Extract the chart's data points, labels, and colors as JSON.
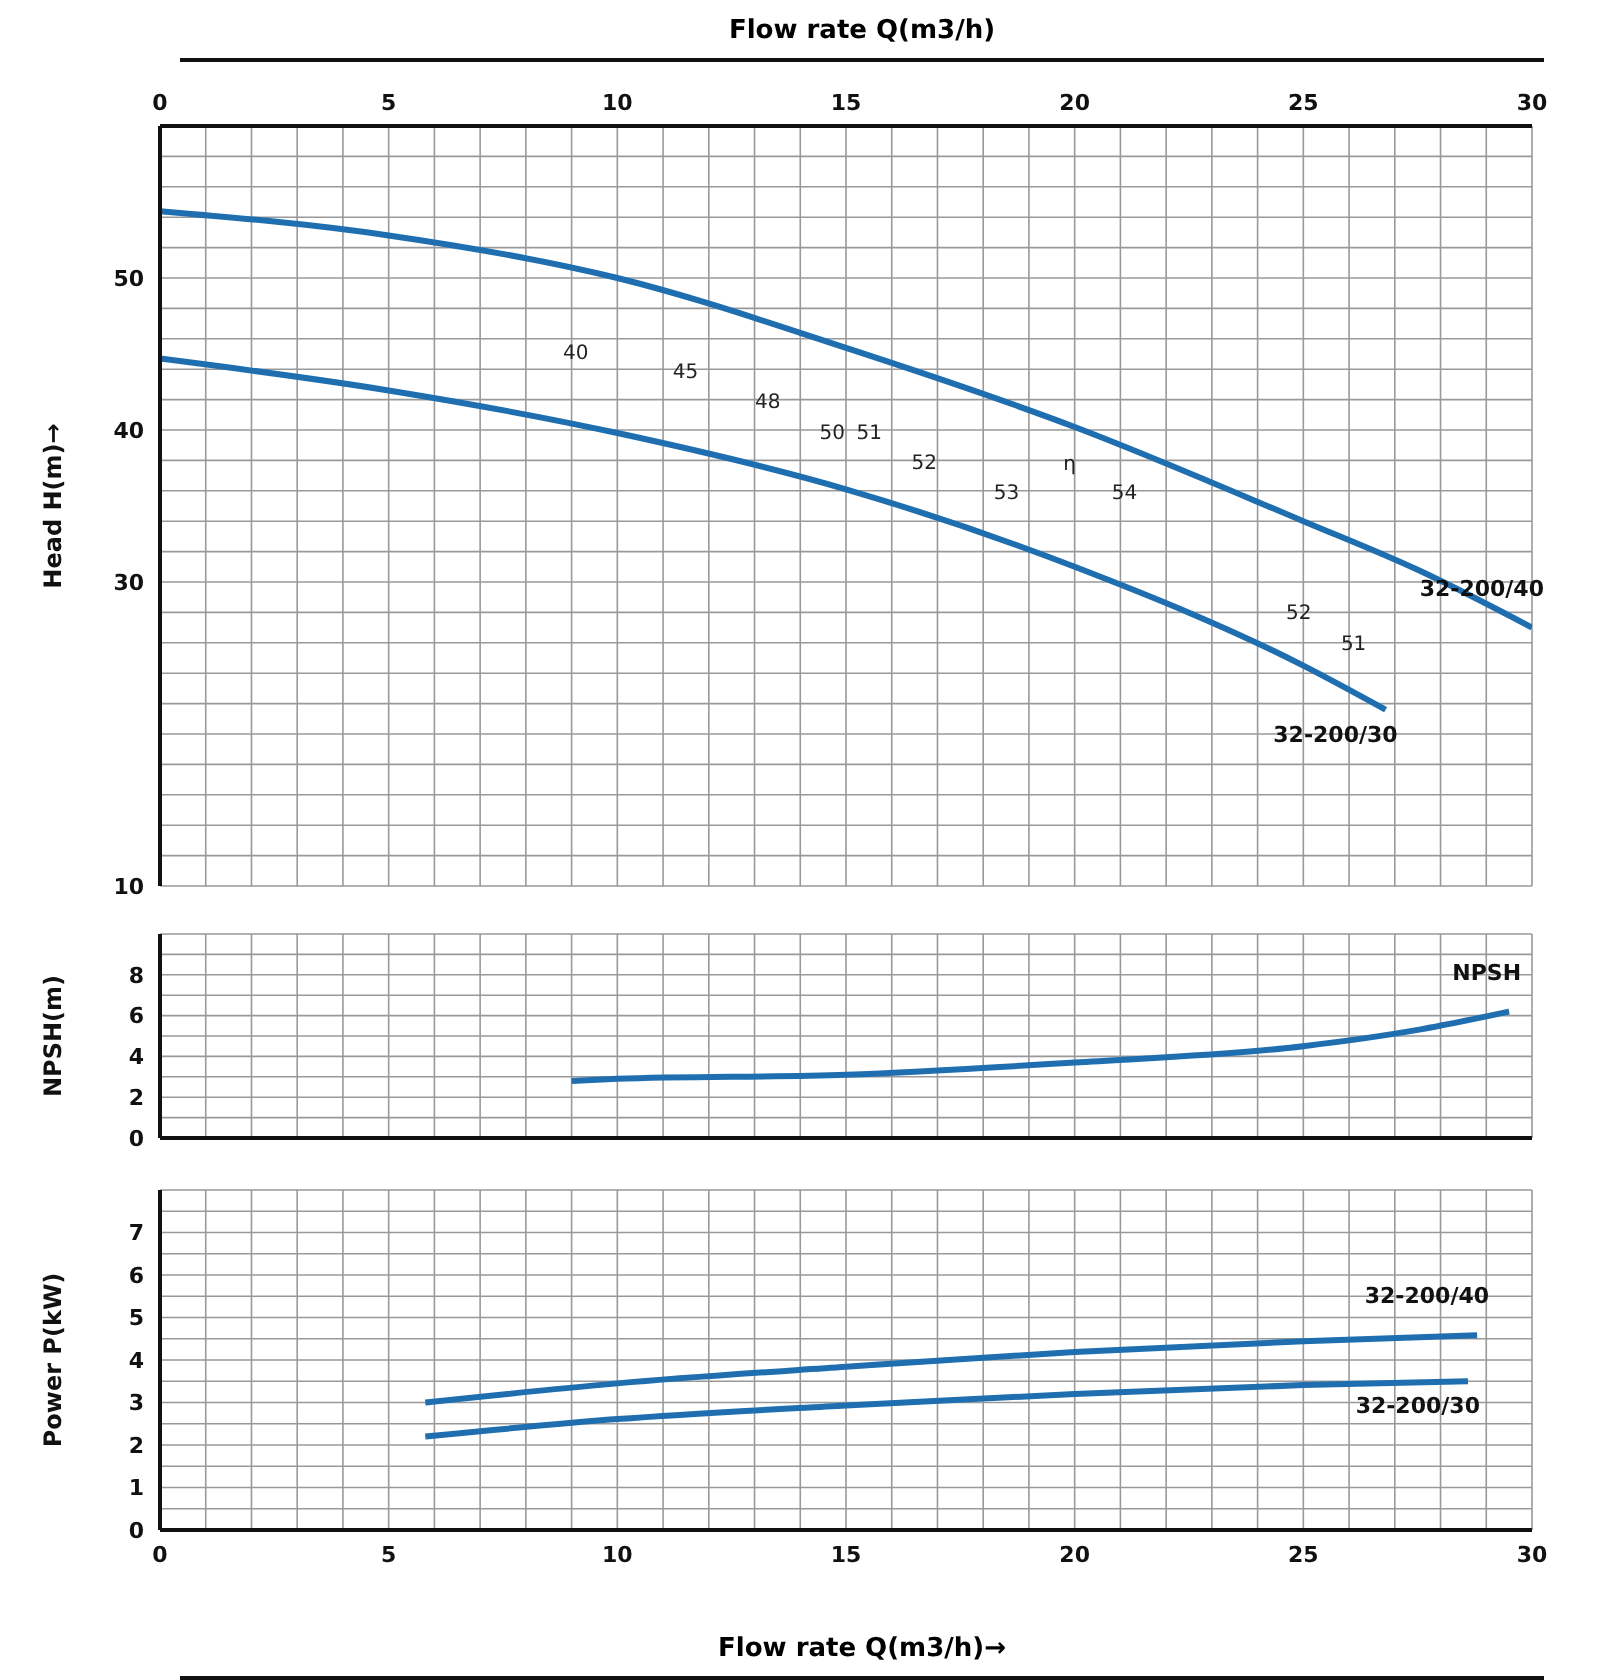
{
  "chart_data": [
    {
      "type": "line",
      "xlabel": "Flow rate Q(m3/h)",
      "ylabel": "Head H(m)→",
      "xlim": [
        0,
        30
      ],
      "xticks": [
        0,
        {
          "value": 1,
          "label": null
        },
        {
          "value": 2,
          "label": null
        },
        {
          "value": 3,
          "label": null
        },
        {
          "value": 4,
          "label": null
        },
        5,
        {
          "value": 6,
          "label": null
        },
        {
          "value": 7,
          "label": null
        },
        {
          "value": 8,
          "label": null
        },
        {
          "value": 9,
          "label": null
        },
        10,
        {
          "value": 11,
          "label": null
        },
        {
          "value": 12,
          "label": null
        },
        {
          "value": 13,
          "label": null
        },
        {
          "value": 14,
          "label": null
        },
        15,
        {
          "value": 16,
          "label": null
        },
        {
          "value": 17,
          "label": null
        },
        {
          "value": 18,
          "label": null
        },
        {
          "value": 19,
          "label": null
        },
        20,
        {
          "value": 21,
          "label": null
        },
        {
          "value": 22,
          "label": null
        },
        {
          "value": 23,
          "label": null
        },
        {
          "value": 24,
          "label": null
        },
        25,
        {
          "value": 26,
          "label": null
        },
        {
          "value": 27,
          "label": null
        },
        {
          "value": 28,
          "label": null
        },
        {
          "value": 29,
          "label": null
        },
        30
      ],
      "ylim": [
        10,
        60
      ],
      "yticks": [
        10,
        {
          "value": 12,
          "label": null
        },
        {
          "value": 14,
          "label": null
        },
        {
          "value": 16,
          "label": null
        },
        {
          "value": 18,
          "label": null
        },
        {
          "value": 20,
          "label": null
        },
        {
          "value": 22,
          "label": null
        },
        {
          "value": 24,
          "label": null
        },
        {
          "value": 26,
          "label": null
        },
        {
          "value": 28,
          "label": null
        },
        30,
        {
          "value": 32,
          "label": null
        },
        {
          "value": 34,
          "label": null
        },
        {
          "value": 36,
          "label": null
        },
        {
          "value": 38,
          "label": null
        },
        40,
        {
          "value": 42,
          "label": null
        },
        {
          "value": 44,
          "label": null
        },
        {
          "value": 46,
          "label": null
        },
        {
          "value": 48,
          "label": null
        },
        50,
        {
          "value": 52,
          "label": null
        },
        {
          "value": 54,
          "label": null
        },
        {
          "value": 56,
          "label": null
        },
        {
          "value": 58,
          "label": null
        },
        {
          "value": 60,
          "label": null
        }
      ],
      "grid": true,
      "legend": false,
      "marker": "none",
      "line_style": "solid",
      "series": [
        {
          "name": "32-200/40",
          "color": "#1f6fb0",
          "x": [
            0,
            5,
            10,
            15,
            20,
            25,
            27.5,
            30
          ],
          "values": [
            54.4,
            52.8,
            50.0,
            45.4,
            40.2,
            34.0,
            30.8,
            27.0
          ]
        },
        {
          "name": "32-200/30",
          "color": "#1f6fb0",
          "x": [
            0,
            5,
            10,
            15,
            20,
            25,
            26.8
          ],
          "values": [
            44.7,
            42.6,
            39.8,
            36.1,
            31.0,
            24.5,
            21.6
          ]
        }
      ],
      "annotations": [
        "40",
        "45",
        "48",
        "50",
        "51",
        "52",
        "53",
        "η",
        "54",
        "52",
        "51"
      ]
    },
    {
      "type": "line",
      "ylabel": "NPSH(m)",
      "xlim": [
        0,
        30
      ],
      "xticks": [
        0,
        {
          "value": 1,
          "label": null
        },
        {
          "value": 2,
          "label": null
        },
        {
          "value": 3,
          "label": null
        },
        {
          "value": 4,
          "label": null
        },
        5,
        {
          "value": 6,
          "label": null
        },
        {
          "value": 7,
          "label": null
        },
        {
          "value": 8,
          "label": null
        },
        {
          "value": 9,
          "label": null
        },
        10,
        {
          "value": 11,
          "label": null
        },
        {
          "value": 12,
          "label": null
        },
        {
          "value": 13,
          "label": null
        },
        {
          "value": 14,
          "label": null
        },
        15,
        {
          "value": 16,
          "label": null
        },
        {
          "value": 17,
          "label": null
        },
        {
          "value": 18,
          "label": null
        },
        {
          "value": 19,
          "label": null
        },
        20,
        {
          "value": 21,
          "label": null
        },
        {
          "value": 22,
          "label": null
        },
        {
          "value": 23,
          "label": null
        },
        {
          "value": 24,
          "label": null
        },
        25,
        {
          "value": 26,
          "label": null
        },
        {
          "value": 27,
          "label": null
        },
        {
          "value": 28,
          "label": null
        },
        {
          "value": 29,
          "label": null
        },
        30
      ],
      "ylim": [
        0,
        10
      ],
      "yticks": [
        0,
        {
          "value": 1,
          "label": null
        },
        2,
        {
          "value": 3,
          "label": null
        },
        4,
        {
          "value": 5,
          "label": null
        },
        6,
        {
          "value": 7,
          "label": null
        },
        8,
        {
          "value": 9,
          "label": null
        },
        {
          "value": 10,
          "label": null
        }
      ],
      "tick_labels": "y",
      "grid": true,
      "legend": false,
      "marker": "none",
      "line_style": "solid",
      "series": [
        {
          "name": "NPSH",
          "color": "#1f6fb0",
          "x": [
            9,
            10,
            15,
            20,
            25,
            27.5,
            29.5
          ],
          "values": [
            2.8,
            2.9,
            3.1,
            3.7,
            4.5,
            5.3,
            6.2
          ]
        }
      ]
    },
    {
      "type": "line",
      "xlabel": "Flow rate Q(m3/h)→",
      "ylabel": "Power P(kW)",
      "xlim": [
        0,
        30
      ],
      "xticks": [
        0,
        {
          "value": 1,
          "label": null
        },
        {
          "value": 2,
          "label": null
        },
        {
          "value": 3,
          "label": null
        },
        {
          "value": 4,
          "label": null
        },
        5,
        {
          "value": 6,
          "label": null
        },
        {
          "value": 7,
          "label": null
        },
        {
          "value": 8,
          "label": null
        },
        {
          "value": 9,
          "label": null
        },
        10,
        {
          "value": 11,
          "label": null
        },
        {
          "value": 12,
          "label": null
        },
        {
          "value": 13,
          "label": null
        },
        {
          "value": 14,
          "label": null
        },
        15,
        {
          "value": 16,
          "label": null
        },
        {
          "value": 17,
          "label": null
        },
        {
          "value": 18,
          "label": null
        },
        {
          "value": 19,
          "label": null
        },
        20,
        {
          "value": 21,
          "label": null
        },
        {
          "value": 22,
          "label": null
        },
        {
          "value": 23,
          "label": null
        },
        {
          "value": 24,
          "label": null
        },
        25,
        {
          "value": 26,
          "label": null
        },
        {
          "value": 27,
          "label": null
        },
        {
          "value": 28,
          "label": null
        },
        {
          "value": 29,
          "label": null
        },
        30
      ],
      "ylim": [
        0,
        8
      ],
      "yticks": [
        0,
        {
          "value": 0.5,
          "label": null
        },
        1,
        {
          "value": 1.5,
          "label": null
        },
        2,
        {
          "value": 2.5,
          "label": null
        },
        3,
        {
          "value": 3.5,
          "label": null
        },
        4,
        {
          "value": 4.5,
          "label": null
        },
        5,
        {
          "value": 5.5,
          "label": null
        },
        6,
        {
          "value": 6.5,
          "label": null
        },
        7,
        {
          "value": 7.5,
          "label": null
        },
        {
          "value": 8,
          "label": null
        }
      ],
      "grid": true,
      "legend": false,
      "marker": "none",
      "line_style": "solid",
      "series": [
        {
          "name": "32-200/40",
          "color": "#1f6fb0",
          "x": [
            5.8,
            10,
            15,
            20,
            25,
            28.8
          ],
          "values": [
            3.0,
            3.45,
            3.84,
            4.19,
            4.44,
            4.58
          ]
        },
        {
          "name": "32-200/30",
          "color": "#1f6fb0",
          "x": [
            5.8,
            10,
            15,
            20,
            25,
            28.6
          ],
          "values": [
            2.2,
            2.61,
            2.93,
            3.2,
            3.41,
            3.5
          ]
        }
      ]
    }
  ]
}
